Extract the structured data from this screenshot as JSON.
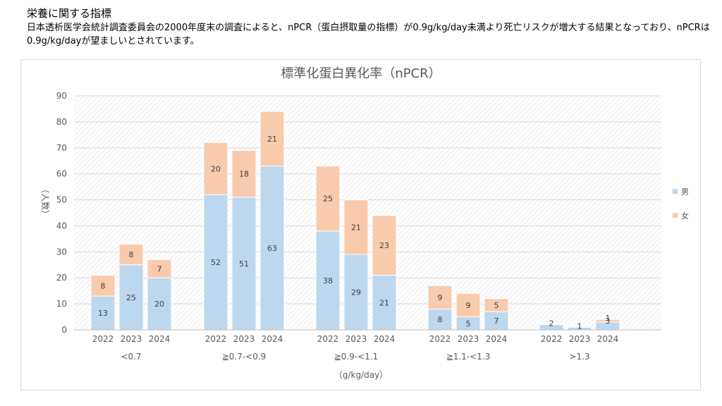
{
  "header": {
    "title": "栄養に関する指標",
    "description": "日本透析医学会統計調査委員会の2000年度末の調査によると、nPCR（蛋白摂取量の指標）が0.9g/kg/day未満より死亡リスクが増大する結果となっており、nPCRは0.9g/kg/dayが望ましいとされています。"
  },
  "chart_data": {
    "type": "bar",
    "stacked": true,
    "title": "標準化蛋白異化率（nPCR）",
    "ylabel": "（人数）",
    "xlabel": "（g/kg/day）",
    "ylim": [
      0,
      90
    ],
    "yticks": [
      0,
      10,
      20,
      30,
      40,
      50,
      60,
      70,
      80,
      90
    ],
    "grid": true,
    "legend_position": "right",
    "groups": [
      {
        "label": "<0.7",
        "years": [
          "2022",
          "2023",
          "2024"
        ]
      },
      {
        "label": "≧0.7-<0.9",
        "years": [
          "2022",
          "2023",
          "2024"
        ]
      },
      {
        "label": "≧0.9-<1.1",
        "years": [
          "2022",
          "2023",
          "2024"
        ]
      },
      {
        "label": "≧1.1-<1.3",
        "years": [
          "2022",
          "2023",
          "2024"
        ]
      },
      {
        "label": ">1.3",
        "years": [
          "2022",
          "2023",
          "2024"
        ]
      }
    ],
    "series": [
      {
        "name": "男",
        "color": "#bdd7ee",
        "values": [
          13,
          25,
          20,
          52,
          51,
          63,
          38,
          29,
          21,
          8,
          5,
          7,
          2,
          1,
          3
        ]
      },
      {
        "name": "女",
        "color": "#f8cbad",
        "values": [
          8,
          8,
          7,
          20,
          18,
          21,
          25,
          21,
          23,
          9,
          9,
          5,
          0,
          0,
          1
        ]
      }
    ]
  }
}
